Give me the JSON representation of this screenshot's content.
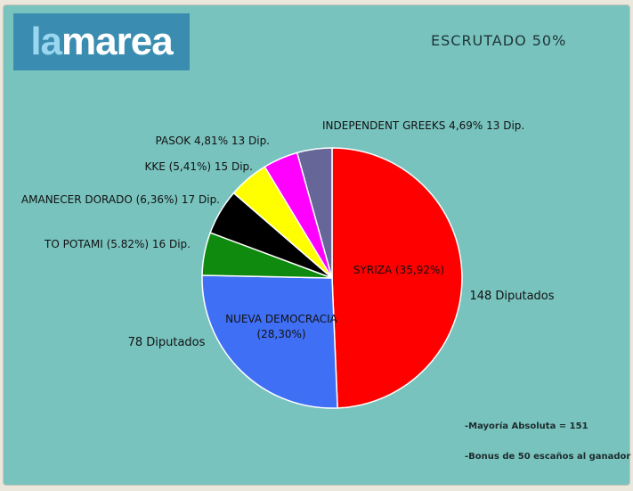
{
  "logo": {
    "part1": "la",
    "part2": "marea"
  },
  "status_text": "ESCRUTADO 50%",
  "chart_data": {
    "type": "pie",
    "slices": [
      {
        "label": "SYRIZA (35,92%)",
        "value": 148,
        "seats_label": "148 Diputados",
        "color": "#ff0000"
      },
      {
        "label": "NUEVA DEMOCRACIA (28,30%)",
        "value": 78,
        "seats_label": "78 Diputados",
        "color": "#3f6ff5"
      },
      {
        "label": "TO POTAMI (5.82%) 16 Dip.",
        "value": 16,
        "color": "#0f8a0f"
      },
      {
        "label": "AMANECER DORADO (6,36%) 17 Dip.",
        "value": 17,
        "color": "#000000"
      },
      {
        "label": "KKE (5,41%) 15 Dip.",
        "value": 15,
        "color": "#ffff00"
      },
      {
        "label": "PASOK 4,81% 13 Dip.",
        "value": 13,
        "color": "#ff00ff"
      },
      {
        "label": "INDEPENDENT GREEKS 4,69% 13 Dip.",
        "value": 13,
        "color": "#666699"
      }
    ]
  },
  "notes": [
    "-Mayoría Absoluta = 151",
    "-Bonus de 50 escaños al ganador"
  ]
}
